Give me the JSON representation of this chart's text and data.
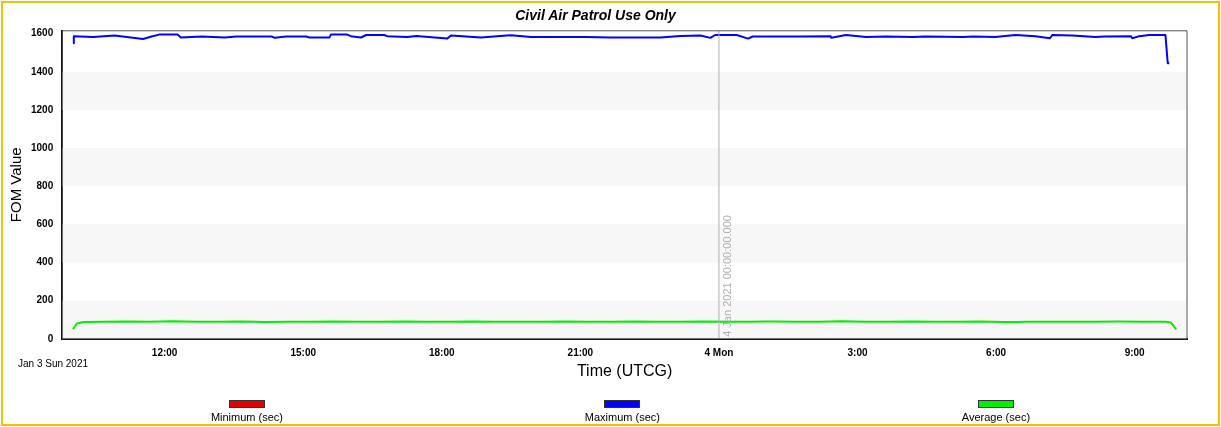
{
  "chart_data": {
    "type": "line",
    "title": "Civil Air Patrol Use Only",
    "xlabel": "Time (UTCG)",
    "ylabel": "FOM Value",
    "xlim": [
      "2021-01-03T09:47",
      "2021-01-04T10:08"
    ],
    "xticks": [
      {
        "value": "2021-01-03T12:00",
        "label": "12:00"
      },
      {
        "value": "2021-01-03T15:00",
        "label": "15:00"
      },
      {
        "value": "2021-01-03T18:00",
        "label": "18:00"
      },
      {
        "value": "2021-01-03T21:00",
        "label": "21:00"
      },
      {
        "value": "2021-01-04T00:00",
        "label": "4 Mon"
      },
      {
        "value": "2021-01-04T03:00",
        "label": "3:00"
      },
      {
        "value": "2021-01-04T06:00",
        "label": "6:00"
      },
      {
        "value": "2021-01-04T09:00",
        "label": "9:00"
      }
    ],
    "ylim": [
      0,
      1615
    ],
    "yticks": [
      0,
      200,
      400,
      600,
      800,
      1000,
      1200,
      1400,
      1600
    ],
    "legend": "bottom",
    "marker": "none",
    "line_style": "solid",
    "series": [
      {
        "name": "Minimum (sec)",
        "color": "#e00000"
      },
      {
        "name": "Maximum (sec)",
        "color": "#0000ff",
        "x": [
          "2021-01-03T10:01",
          "2021-01-03T10:02",
          "2021-01-03T10:27",
          "2021-01-03T10:55",
          "2021-01-03T11:32",
          "2021-01-03T11:43",
          "2021-01-03T11:53",
          "2021-01-03T12:17",
          "2021-01-03T12:21",
          "2021-01-03T12:48",
          "2021-01-03T13:18",
          "2021-01-03T13:33",
          "2021-01-03T14:19",
          "2021-01-03T14:23",
          "2021-01-03T14:38",
          "2021-01-03T15:04",
          "2021-01-03T15:08",
          "2021-01-03T15:34",
          "2021-01-03T15:36",
          "2021-01-03T15:57",
          "2021-01-03T16:02",
          "2021-01-03T16:15",
          "2021-01-03T16:22",
          "2021-01-03T16:45",
          "2021-01-03T16:49",
          "2021-01-03T17:15",
          "2021-01-03T17:27",
          "2021-01-03T18:07",
          "2021-01-03T18:12",
          "2021-01-03T18:51",
          "2021-01-03T19:30",
          "2021-01-03T19:56",
          "2021-01-03T21:07",
          "2021-01-03T21:39",
          "2021-01-03T22:44",
          "2021-01-03T23:10",
          "2021-01-03T23:36",
          "2021-01-03T23:49",
          "2021-01-03T23:55",
          "2021-01-04T00:23",
          "2021-01-04T00:38",
          "2021-01-04T00:44",
          "2021-01-04T01:49",
          "2021-01-04T02:25",
          "2021-01-04T02:26",
          "2021-01-04T02:45",
          "2021-01-04T03:11",
          "2021-01-04T03:37",
          "2021-01-04T04:12",
          "2021-01-04T04:28",
          "2021-01-04T05:17",
          "2021-01-04T05:30",
          "2021-01-04T05:59",
          "2021-01-04T06:25",
          "2021-01-04T06:51",
          "2021-01-04T07:10",
          "2021-01-04T07:13",
          "2021-01-04T07:39",
          "2021-01-04T08:09",
          "2021-01-04T08:21",
          "2021-01-04T08:55",
          "2021-01-04T08:57",
          "2021-01-04T09:06",
          "2021-01-04T09:19",
          "2021-01-04T09:40",
          "2021-01-04T09:43",
          "2021-01-04T09:45"
        ],
        "values": [
          1550,
          1587,
          1583,
          1590,
          1572,
          1585,
          1595,
          1595,
          1580,
          1585,
          1580,
          1585,
          1585,
          1578,
          1585,
          1585,
          1580,
          1580,
          1595,
          1595,
          1587,
          1580,
          1593,
          1593,
          1587,
          1583,
          1588,
          1574,
          1590,
          1580,
          1592,
          1582,
          1583,
          1580,
          1580,
          1588,
          1590,
          1578,
          1593,
          1593,
          1574,
          1585,
          1585,
          1587,
          1578,
          1593,
          1582,
          1585,
          1582,
          1585,
          1582,
          1585,
          1582,
          1593,
          1587,
          1576,
          1593,
          1590,
          1582,
          1585,
          1587,
          1576,
          1587,
          1593,
          1593,
          1445,
          1445
        ]
      },
      {
        "name": "Average (sec)",
        "color": "#00ee00",
        "x": [
          "2021-01-03T10:01",
          "2021-01-03T10:06",
          "2021-01-03T10:15",
          "2021-01-03T10:40",
          "2021-01-03T11:10",
          "2021-01-03T11:40",
          "2021-01-03T12:10",
          "2021-01-03T12:40",
          "2021-01-03T13:10",
          "2021-01-03T13:40",
          "2021-01-03T14:10",
          "2021-01-03T14:40",
          "2021-01-03T15:10",
          "2021-01-03T15:40",
          "2021-01-03T16:10",
          "2021-01-03T16:40",
          "2021-01-03T17:10",
          "2021-01-03T17:40",
          "2021-01-03T18:10",
          "2021-01-03T18:40",
          "2021-01-03T19:10",
          "2021-01-03T19:40",
          "2021-01-03T20:10",
          "2021-01-03T20:40",
          "2021-01-03T21:10",
          "2021-01-03T21:40",
          "2021-01-03T22:10",
          "2021-01-03T22:40",
          "2021-01-03T23:10",
          "2021-01-03T23:40",
          "2021-01-04T00:10",
          "2021-01-04T00:40",
          "2021-01-04T01:10",
          "2021-01-04T01:40",
          "2021-01-04T02:10",
          "2021-01-04T02:40",
          "2021-01-04T03:10",
          "2021-01-04T03:40",
          "2021-01-04T04:10",
          "2021-01-04T04:40",
          "2021-01-04T05:10",
          "2021-01-04T05:40",
          "2021-01-04T06:10",
          "2021-01-04T06:40",
          "2021-01-04T07:10",
          "2021-01-04T07:40",
          "2021-01-04T08:10",
          "2021-01-04T08:40",
          "2021-01-04T09:10",
          "2021-01-04T09:40",
          "2021-01-04T09:47",
          "2021-01-04T09:54"
        ],
        "values": [
          50,
          80,
          88,
          90,
          91,
          89,
          92,
          89,
          90,
          91,
          88,
          90,
          89,
          91,
          90,
          89,
          91,
          90,
          89,
          91,
          90,
          89,
          90,
          91,
          89,
          90,
          91,
          89,
          90,
          91,
          89,
          90,
          91,
          89,
          90,
          92,
          89,
          90,
          91,
          89,
          90,
          91,
          88,
          89,
          90,
          89,
          90,
          91,
          90,
          90,
          86,
          50
        ]
      }
    ],
    "bands": [
      {
        "axis": "y",
        "from": 0,
        "to": 200,
        "color": "#f7f7f7"
      },
      {
        "axis": "y",
        "from": 400,
        "to": 600,
        "color": "#f7f7f7"
      },
      {
        "axis": "y",
        "from": 800,
        "to": 1000,
        "color": "#f7f7f7"
      },
      {
        "axis": "y",
        "from": 1200,
        "to": 1400,
        "color": "#f7f7f7"
      }
    ],
    "ref_lines": [
      {
        "axis": "x",
        "value": "2021-01-04T00:00",
        "label": "4 Jan 2021 00:00:00.000",
        "color": "#b0b0b0"
      }
    ],
    "annotations": [
      "Jan 3 Sun 2021"
    ]
  }
}
